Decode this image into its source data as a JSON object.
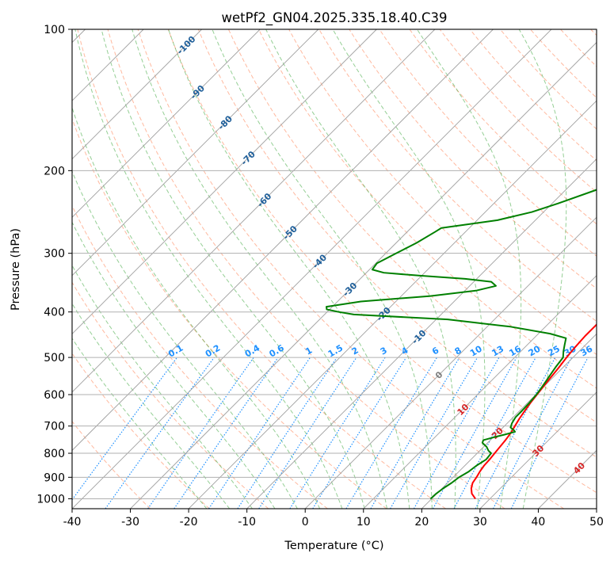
{
  "chart_data": {
    "type": "line",
    "diagram": "skew-T log-P",
    "title": "wetPf2_GN04.2025.335.18.40.C39",
    "xlabel": "Temperature (°C)",
    "ylabel": "Pressure (hPa)",
    "xlim": [
      -40,
      50
    ],
    "ylim_hpa": [
      1050,
      100
    ],
    "x_ticks": [
      -40,
      -30,
      -20,
      -10,
      0,
      10,
      20,
      30,
      40,
      50
    ],
    "y_ticks": [
      100,
      200,
      300,
      400,
      500,
      600,
      700,
      800,
      900,
      1000
    ],
    "grid": true,
    "series": [
      {
        "name": "Temperature",
        "color": "#ff0000",
        "points": [
          [
            1000,
            27.5
          ],
          [
            975,
            26.0
          ],
          [
            950,
            25.0
          ],
          [
            925,
            24.3
          ],
          [
            900,
            24.0
          ],
          [
            875,
            23.6
          ],
          [
            850,
            23.3
          ],
          [
            825,
            23.2
          ],
          [
            800,
            23.0
          ],
          [
            775,
            22.8
          ],
          [
            750,
            22.6
          ],
          [
            725,
            22.3
          ],
          [
            700,
            21.8
          ],
          [
            675,
            21.3
          ],
          [
            650,
            20.9
          ],
          [
            625,
            20.5
          ],
          [
            600,
            20.2
          ],
          [
            575,
            19.9
          ],
          [
            550,
            19.6
          ],
          [
            525,
            19.3
          ],
          [
            500,
            18.9
          ],
          [
            475,
            18.6
          ],
          [
            450,
            18.4
          ],
          [
            425,
            18.4
          ],
          [
            400,
            18.3
          ],
          [
            385,
            17.9
          ],
          [
            370,
            16.9
          ],
          [
            355,
            15.6
          ],
          [
            340,
            14.5
          ],
          [
            327,
            14.0
          ],
          [
            315,
            13.2
          ],
          [
            300,
            12.0
          ],
          [
            280,
            10.2
          ],
          [
            260,
            8.1
          ],
          [
            240,
            6.3
          ],
          [
            220,
            4.6
          ],
          [
            200,
            2.5
          ],
          [
            185,
            1.3
          ],
          [
            170,
            0.4
          ],
          [
            155,
            -0.4
          ],
          [
            140,
            -0.7
          ],
          [
            125,
            -0.7
          ],
          [
            112,
            0.5
          ],
          [
            105,
            0.8
          ],
          [
            100,
            0.4
          ]
        ]
      },
      {
        "name": "Dewpoint",
        "color": "#008000",
        "points": [
          [
            1000,
            19.8
          ],
          [
            975,
            19.9
          ],
          [
            950,
            20.2
          ],
          [
            925,
            20.7
          ],
          [
            900,
            21.0
          ],
          [
            875,
            21.7
          ],
          [
            850,
            22.0
          ],
          [
            825,
            22.6
          ],
          [
            800,
            22.4
          ],
          [
            790,
            21.5
          ],
          [
            775,
            20.5
          ],
          [
            760,
            19.1
          ],
          [
            750,
            18.8
          ],
          [
            740,
            20.1
          ],
          [
            730,
            21.5
          ],
          [
            720,
            22.8
          ],
          [
            715,
            22.4
          ],
          [
            705,
            21.3
          ],
          [
            690,
            20.8
          ],
          [
            670,
            20.4
          ],
          [
            650,
            20.4
          ],
          [
            625,
            20.3
          ],
          [
            600,
            20.1
          ],
          [
            575,
            19.7
          ],
          [
            550,
            19.2
          ],
          [
            525,
            18.7
          ],
          [
            500,
            18.3
          ],
          [
            485,
            17.3
          ],
          [
            470,
            16.4
          ],
          [
            455,
            15.5
          ],
          [
            445,
            12.0
          ],
          [
            430,
            4.0
          ],
          [
            415,
            -8.0
          ],
          [
            405,
            -25.0
          ],
          [
            400,
            -28.0
          ],
          [
            395,
            -30.5
          ],
          [
            390,
            -31.0
          ],
          [
            380,
            -26.0
          ],
          [
            370,
            -15.0
          ],
          [
            360,
            -8.0
          ],
          [
            352,
            -5.5
          ],
          [
            345,
            -7.0
          ],
          [
            340,
            -12.0
          ],
          [
            335,
            -20.0
          ],
          [
            330,
            -27.0
          ],
          [
            325,
            -29.5
          ],
          [
            315,
            -29.8
          ],
          [
            300,
            -28.2
          ],
          [
            285,
            -26.5
          ],
          [
            270,
            -25.2
          ],
          [
            265,
            -24.8
          ],
          [
            255,
            -16.5
          ],
          [
            245,
            -12.0
          ],
          [
            235,
            -9.0
          ],
          [
            220,
            -4.8
          ],
          [
            205,
            -2.3
          ],
          [
            195,
            -1.6
          ],
          [
            185,
            -1.5
          ],
          [
            170,
            -1.6
          ],
          [
            155,
            -1.6
          ],
          [
            140,
            -2.5
          ],
          [
            128,
            -3.0
          ],
          [
            122,
            -2.4
          ],
          [
            115,
            -1.5
          ],
          [
            108,
            -1.3
          ],
          [
            100,
            -1.7
          ]
        ]
      }
    ],
    "isotherm_labels": [
      "-100",
      "-90",
      "-80",
      "-70",
      "-60",
      "-50",
      "-40",
      "-30",
      "-20",
      "-10",
      "0",
      "10",
      "20",
      "30",
      "40"
    ],
    "mixing_ratio_labels": [
      "0.1",
      "0.2",
      "0.4",
      "0.6",
      "1",
      "1.5",
      "2",
      "3",
      "4",
      "6",
      "8",
      "10",
      "13",
      "16",
      "20",
      "25",
      "30",
      "36"
    ],
    "colors": {
      "isotherm_cold": "#1f5f9a",
      "isotherm_zero": "#808080",
      "isotherm_warm": "#d62728",
      "mixing_ratio": "#1e90ff",
      "dry_adiabat": "#ff7f50",
      "moist_adiabat": "#2ca02c",
      "skew_grid": "#a0a0a0"
    }
  }
}
